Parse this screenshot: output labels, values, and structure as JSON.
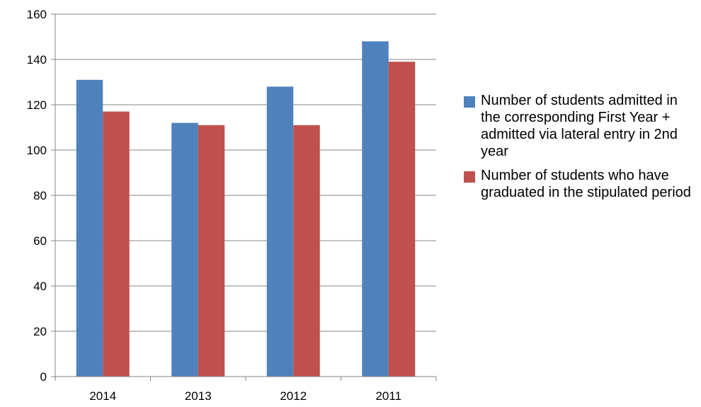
{
  "chart_data": {
    "type": "bar",
    "categories": [
      "2014",
      "2013",
      "2012",
      "2011"
    ],
    "series": [
      {
        "name": "Number  of students admitted in the corresponding First Year + admitted via lateral entry in 2nd year",
        "color": "#4f81bd",
        "values": [
          131,
          112,
          128,
          148
        ]
      },
      {
        "name": "Number  of students who have graduated in the stipulated period",
        "color": "#c0504d",
        "values": [
          117,
          111,
          111,
          139
        ]
      }
    ],
    "y_ticks": [
      "0",
      "20",
      "40",
      "60",
      "80",
      "100",
      "120",
      "140",
      "160"
    ],
    "ylim": [
      0,
      160
    ],
    "grid": true,
    "legend_position": "right",
    "title": "",
    "xlabel": "",
    "ylabel": ""
  }
}
